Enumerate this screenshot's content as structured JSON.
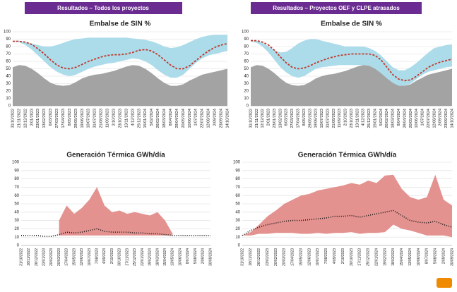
{
  "headers": [
    "Resultados – Todos los proyectos",
    "Resultados – Proyectos OEF y CLPE atrasados"
  ],
  "chart_data": [
    {
      "type": "area",
      "title": "Embalse de SIN %",
      "categories": [
        "31/10/2022",
        "21/11/2022",
        "12/12/2022",
        "2/01/2023",
        "23/01/2023",
        "13/02/2023",
        "6/03/2023",
        "27/03/2023",
        "17/04/2023",
        "8/05/2023",
        "29/05/2023",
        "19/06/2023",
        "10/07/2023",
        "31/07/2023",
        "21/08/2023",
        "11/09/2023",
        "2/10/2023",
        "23/10/2023",
        "13/11/2023",
        "4/12/2023",
        "25/12/2023",
        "15/01/2024",
        "5/02/2024",
        "26/02/2024",
        "18/03/2024",
        "8/04/2024",
        "29/04/2024",
        "20/05/2024",
        "10/06/2024",
        "1/07/2024",
        "22/07/2024",
        "12/08/2024",
        "2/09/2024",
        "23/09/2024",
        "14/10/2024"
      ],
      "series": [
        {
          "kind": "band",
          "color": "#acdcea",
          "low": [
            87,
            86,
            82,
            76,
            68,
            60,
            52,
            46,
            42,
            40,
            42,
            46,
            50,
            53,
            55,
            57,
            58,
            60,
            62,
            64,
            63,
            60,
            55,
            48,
            42,
            38,
            38,
            42,
            50,
            58,
            64,
            68,
            70,
            72,
            74
          ],
          "values": [
            88,
            88,
            86,
            84,
            82,
            80,
            80,
            82,
            85,
            88,
            90,
            91,
            92,
            92,
            92,
            92,
            92,
            92,
            92,
            91,
            90,
            89,
            87,
            84,
            80,
            78,
            79,
            82,
            86,
            90,
            93,
            95,
            96,
            96,
            96
          ]
        },
        {
          "kind": "area",
          "color": "#a3a3a3",
          "values": [
            52,
            55,
            54,
            50,
            44,
            37,
            31,
            28,
            27,
            28,
            32,
            37,
            40,
            42,
            43,
            45,
            47,
            50,
            53,
            55,
            54,
            50,
            44,
            37,
            31,
            27,
            27,
            29,
            34,
            38,
            42,
            44,
            46,
            48,
            50
          ]
        },
        {
          "kind": "dashed",
          "color": "#c0392b",
          "values": [
            87,
            87,
            86,
            83,
            77,
            70,
            62,
            55,
            51,
            50,
            52,
            56,
            60,
            63,
            66,
            68,
            69,
            69,
            70,
            72,
            75,
            76,
            74,
            69,
            62,
            55,
            50,
            50,
            54,
            61,
            68,
            74,
            79,
            82,
            84
          ]
        }
      ],
      "ylim": [
        0,
        100
      ],
      "yticks": [
        0,
        10,
        20,
        30,
        40,
        50,
        60,
        70,
        80,
        90,
        100
      ],
      "grid": true
    },
    {
      "type": "area",
      "title": "Embalse de SIN %",
      "categories": [
        "31/10/2022",
        "21/11/2022",
        "12/12/2022",
        "2/01/2023",
        "23/01/2023",
        "13/02/2023",
        "6/03/2023",
        "27/03/2023",
        "17/04/2023",
        "8/05/2023",
        "29/05/2023",
        "19/06/2023",
        "10/07/2023",
        "31/07/2023",
        "21/08/2023",
        "11/09/2023",
        "2/10/2023",
        "23/10/2023",
        "13/11/2023",
        "4/12/2023",
        "25/12/2023",
        "15/01/2024",
        "5/02/2024",
        "26/02/2024",
        "18/03/2024",
        "8/04/2024",
        "29/04/2024",
        "20/05/2024",
        "10/06/2024",
        "1/07/2024",
        "22/07/2024",
        "12/08/2024",
        "2/09/2024",
        "23/09/2024",
        "14/10/2024"
      ],
      "series": [
        {
          "kind": "band",
          "color": "#acdcea",
          "low": [
            87,
            85,
            80,
            72,
            62,
            52,
            45,
            40,
            38,
            40,
            45,
            50,
            52,
            53,
            54,
            55,
            55,
            55,
            55,
            55,
            54,
            50,
            42,
            35,
            28,
            26,
            27,
            30,
            36,
            42,
            46,
            48,
            50,
            52,
            53
          ],
          "values": [
            88,
            88,
            85,
            80,
            75,
            72,
            73,
            78,
            84,
            88,
            90,
            90,
            88,
            86,
            84,
            82,
            80,
            80,
            80,
            80,
            78,
            74,
            68,
            60,
            52,
            48,
            48,
            52,
            58,
            65,
            72,
            78,
            80,
            82,
            83
          ]
        },
        {
          "kind": "area",
          "color": "#a3a3a3",
          "values": [
            52,
            55,
            54,
            50,
            44,
            37,
            31,
            28,
            27,
            28,
            32,
            37,
            40,
            42,
            43,
            45,
            47,
            50,
            53,
            55,
            54,
            50,
            44,
            37,
            31,
            27,
            27,
            29,
            34,
            38,
            42,
            44,
            46,
            48,
            50
          ]
        },
        {
          "kind": "dashed",
          "color": "#c0392b",
          "values": [
            88,
            88,
            86,
            82,
            75,
            66,
            58,
            52,
            50,
            51,
            54,
            58,
            61,
            64,
            66,
            68,
            69,
            70,
            70,
            70,
            70,
            68,
            62,
            52,
            42,
            36,
            34,
            35,
            40,
            46,
            52,
            56,
            59,
            61,
            63
          ]
        }
      ],
      "ylim": [
        0,
        100
      ],
      "yticks": [
        0,
        10,
        20,
        30,
        40,
        50,
        60,
        70,
        80,
        90,
        100
      ],
      "grid": true
    },
    {
      "type": "area",
      "title": "Generación Térmica GWh/día",
      "categories": [
        "31/10/2022",
        "28/11/2022",
        "26/12/2022",
        "23/01/2023",
        "20/02/2023",
        "20/03/2023",
        "17/04/2023",
        "15/05/2023",
        "12/06/2023",
        "10/07/2023",
        "7/08/2023",
        "4/09/2023",
        "2/10/2023",
        "30/10/2023",
        "27/11/2023",
        "25/12/2023",
        "22/01/2024",
        "19/02/2024",
        "18/03/2024",
        "15/04/2024",
        "13/05/2024",
        "10/06/2024",
        "8/07/2024",
        "5/08/2024",
        "2/09/2024",
        "30/09/2024"
      ],
      "series": [
        {
          "kind": "band",
          "color": "#e3928f",
          "low": [
            null,
            null,
            null,
            null,
            null,
            12,
            12,
            12,
            12,
            12,
            12,
            12,
            12,
            12,
            12,
            12,
            12,
            12,
            12,
            12,
            12,
            null,
            null,
            null,
            null,
            null
          ],
          "values": [
            null,
            null,
            null,
            null,
            null,
            30,
            48,
            38,
            45,
            55,
            70,
            48,
            40,
            42,
            38,
            40,
            38,
            36,
            40,
            30,
            14,
            null,
            null,
            null,
            null,
            null
          ]
        },
        {
          "kind": "dotted",
          "color": "#111111",
          "values": [
            12,
            12,
            12,
            11,
            11,
            13,
            16,
            15,
            16,
            18,
            20,
            17,
            16,
            16,
            16,
            15,
            15,
            14,
            14,
            13,
            12,
            12,
            12,
            12,
            12,
            12
          ]
        }
      ],
      "ylim": [
        0,
        100
      ],
      "yticks": [
        0,
        10,
        20,
        30,
        40,
        50,
        60,
        70,
        80,
        90,
        100
      ],
      "grid": true
    },
    {
      "type": "area",
      "title": "Generación Térmica GWh/día",
      "categories": [
        "31/10/2022",
        "28/11/2022",
        "26/12/2022",
        "23/01/2023",
        "20/02/2023",
        "20/03/2023",
        "17/04/2023",
        "15/05/2023",
        "12/06/2023",
        "10/07/2023",
        "7/08/2023",
        "4/09/2023",
        "2/10/2023",
        "30/10/2023",
        "27/11/2023",
        "25/12/2023",
        "22/01/2024",
        "19/02/2024",
        "18/03/2024",
        "15/04/2024",
        "13/05/2024",
        "10/06/2024",
        "8/07/2024",
        "5/08/2024",
        "2/09/2024",
        "30/09/2024"
      ],
      "series": [
        {
          "kind": "band",
          "color": "#e3928f",
          "low": [
            12,
            12,
            14,
            14,
            15,
            15,
            15,
            14,
            14,
            15,
            14,
            15,
            15,
            16,
            14,
            15,
            15,
            16,
            25,
            20,
            18,
            15,
            12,
            12,
            12,
            10
          ],
          "values": [
            12,
            16,
            25,
            35,
            42,
            50,
            55,
            60,
            62,
            66,
            68,
            70,
            72,
            75,
            73,
            78,
            75,
            84,
            85,
            68,
            58,
            55,
            58,
            85,
            55,
            48
          ]
        },
        {
          "kind": "dotted",
          "color": "#111111",
          "values": [
            12,
            18,
            22,
            25,
            27,
            29,
            30,
            30,
            31,
            32,
            33,
            35,
            35,
            36,
            34,
            36,
            38,
            40,
            42,
            36,
            30,
            28,
            27,
            29,
            25,
            22
          ]
        }
      ],
      "ylim": [
        0,
        100
      ],
      "yticks": [
        0,
        10,
        20,
        30,
        40,
        50,
        60,
        70,
        80,
        90,
        100
      ],
      "grid": true
    }
  ]
}
